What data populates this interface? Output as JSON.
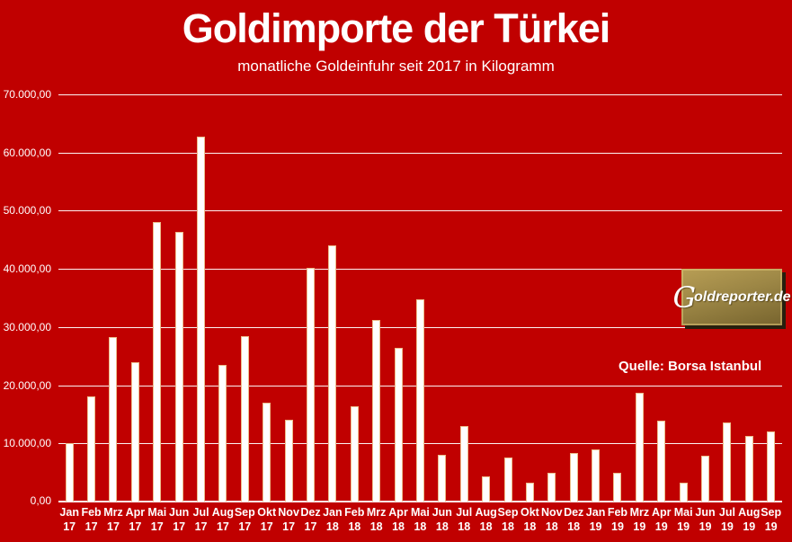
{
  "title": "Goldimporte der Türkei",
  "subtitle": "monatliche Goldeinfuhr seit 2017 in Kilogramm",
  "source_label": "Quelle: Borsa Istanbul",
  "logo": {
    "initial": "G",
    "rest": "oldreporter.de",
    "full_text": "Goldreporter.de"
  },
  "colors": {
    "background": "#C00000",
    "bar_fill": "#FFFFFF",
    "bar_border": "#EDBD8C",
    "gridline": "#FFFFFF",
    "text": "#FFFFFF",
    "logo_gold_light": "#B89E55",
    "logo_gold_dark": "#77642E"
  },
  "chart_data": {
    "type": "bar",
    "title": "Goldimporte der Türkei",
    "subtitle": "monatliche Goldeinfuhr seit 2017 in Kilogramm",
    "unit": "Kilogramm",
    "source": "Quelle: Borsa Istanbul",
    "grid": true,
    "ylim": [
      0,
      70000
    ],
    "ytick_step": 10000,
    "ytick_labels_top_to_bottom": [
      "70.000,00",
      "60.000,00",
      "50.000,00",
      "40.000,00",
      "30.000,00",
      "20.000,00",
      "10.000,00",
      "0,00"
    ],
    "categories": [
      "Jan 17",
      "Feb 17",
      "Mrz 17",
      "Apr 17",
      "Mai 17",
      "Jun 17",
      "Jul 17",
      "Aug 17",
      "Sep 17",
      "Okt 17",
      "Nov 17",
      "Dez 17",
      "Jan 18",
      "Feb 18",
      "Mrz 18",
      "Apr 18",
      "Mai 18",
      "Jun 18",
      "Jul 18",
      "Aug 18",
      "Sep 18",
      "Okt 18",
      "Nov 18",
      "Dez 18",
      "Jan 19",
      "Feb 19",
      "Mrz 19",
      "Apr 19",
      "Mai 19",
      "Jun 19",
      "Jul 19",
      "Aug 19",
      "Sep 19"
    ],
    "values": [
      10000,
      18100,
      28300,
      24000,
      48000,
      46300,
      62800,
      23500,
      28400,
      17000,
      14000,
      40200,
      44000,
      16400,
      31200,
      26400,
      34700,
      8000,
      13000,
      4400,
      7500,
      3200,
      4900,
      8400,
      9000,
      5000,
      18700,
      13900,
      3300,
      7900,
      13600,
      11300,
      12100
    ]
  }
}
